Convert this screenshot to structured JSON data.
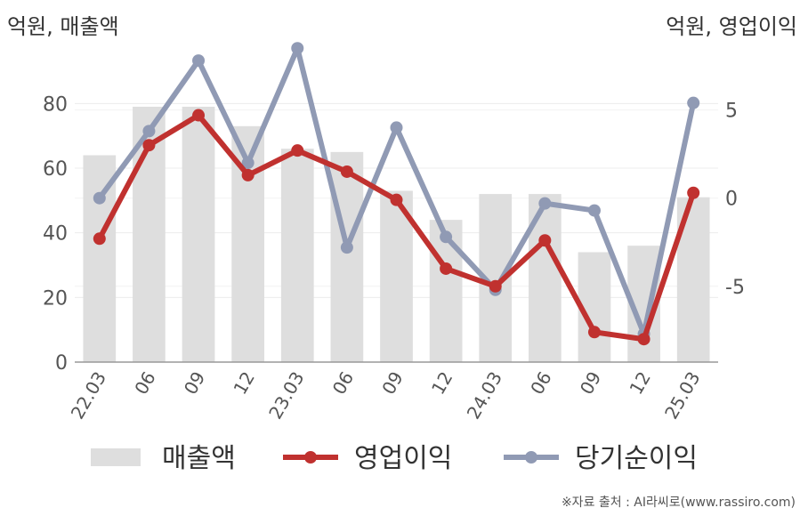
{
  "left_unit": "억원, 매출액",
  "right_unit": "억원, 영업이익",
  "source": "※자료 출처 : AI라씨로(www.rassiro.com)",
  "colors": {
    "bar": "#dedede",
    "operating": "#c0312f",
    "net": "#909ab4"
  },
  "chart_data": {
    "type": "bar",
    "categories": [
      "22.03",
      "06",
      "09",
      "12",
      "23.03",
      "06",
      "09",
      "12",
      "24.03",
      "06",
      "09",
      "12",
      "25.03"
    ],
    "y_left": {
      "range": [
        0,
        90
      ],
      "ticks": [
        0,
        20,
        40,
        60,
        80
      ]
    },
    "y_right": {
      "range": [
        -9.3,
        7.2
      ],
      "ticks": [
        5,
        0,
        -5
      ]
    },
    "series": [
      {
        "name": "매출액",
        "type": "bar",
        "axis": "left",
        "values": [
          64,
          79,
          79,
          73,
          66,
          65,
          53,
          44,
          52,
          52,
          34,
          36,
          51
        ]
      },
      {
        "name": "영업이익",
        "type": "line",
        "axis": "right",
        "values": [
          -2.3,
          3.0,
          4.7,
          1.3,
          2.7,
          1.5,
          -0.1,
          -4.0,
          -5.0,
          -2.4,
          -7.6,
          -8.0,
          0.3
        ]
      },
      {
        "name": "당기순이익",
        "type": "line",
        "axis": "right",
        "values": [
          0.0,
          3.8,
          7.8,
          2.0,
          8.5,
          -2.8,
          4.0,
          -2.2,
          -5.2,
          -0.3,
          -0.7,
          -7.7,
          5.4
        ]
      }
    ],
    "legend": {
      "position": "bottom",
      "items": [
        "매출액",
        "영업이익",
        "당기순이익"
      ]
    }
  }
}
